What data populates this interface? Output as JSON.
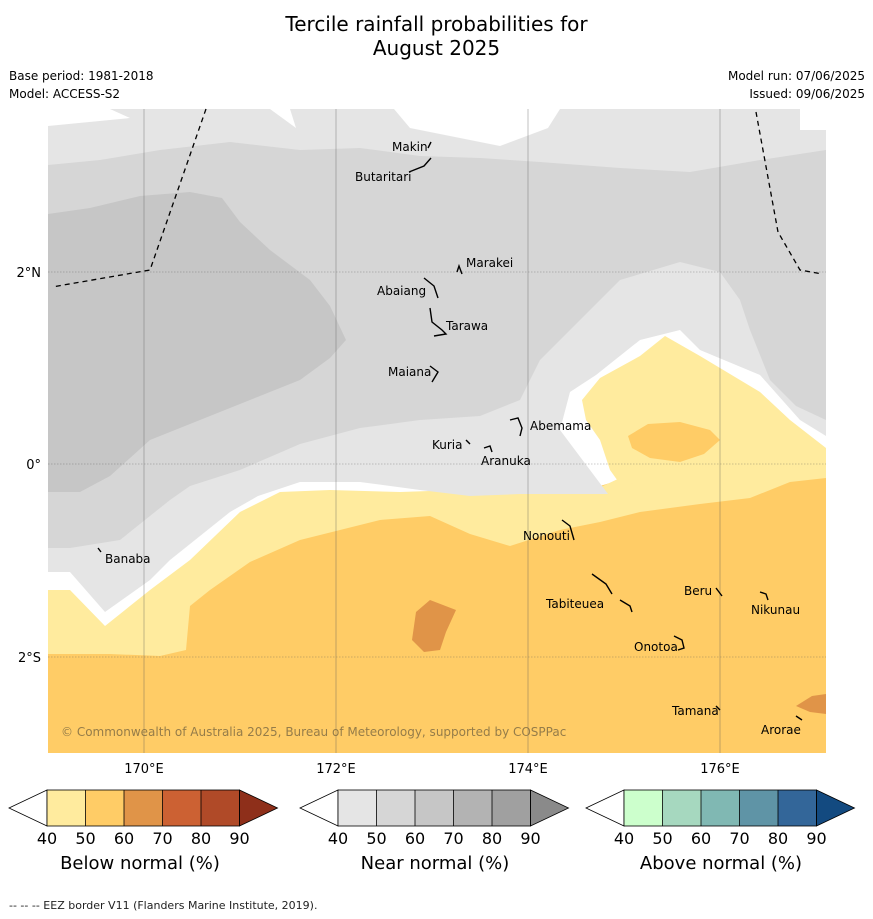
{
  "title_line1": "Tercile rainfall probabilities for",
  "title_line2": "August 2025",
  "base_period": "Base period: 1981-2018",
  "model": "Model: ACCESS-S2",
  "model_run": "Model run: 07/06/2025",
  "issued": "Issued: 09/06/2025",
  "copyright": "© Commonwealth of Australia 2025, Bureau of Meteorology, supported by COSPPac",
  "footer": "--  --  -- EEZ border V11 (Flanders Marine Institute, 2019).",
  "lon_labels": [
    "170°E",
    "172°E",
    "174°E",
    "176°E"
  ],
  "lat_labels": [
    "2°N",
    "0°",
    "2°S"
  ],
  "places": [
    {
      "name": "Makin"
    },
    {
      "name": "Butaritari"
    },
    {
      "name": "Marakei"
    },
    {
      "name": "Abaiang"
    },
    {
      "name": "Tarawa"
    },
    {
      "name": "Maiana"
    },
    {
      "name": "Abemama"
    },
    {
      "name": "Kuria"
    },
    {
      "name": "Aranuka"
    },
    {
      "name": "Nonouti"
    },
    {
      "name": "Banaba"
    },
    {
      "name": "Tabiteuea"
    },
    {
      "name": "Beru"
    },
    {
      "name": "Nikunau"
    },
    {
      "name": "Onotoa"
    },
    {
      "name": "Tamana"
    },
    {
      "name": "Arorae"
    }
  ],
  "colorbars": [
    {
      "label": "Below normal (%)",
      "ticks": [
        "40",
        "50",
        "60",
        "70",
        "80",
        "90"
      ],
      "colors": [
        "#ffffff",
        "#ffeb9e",
        "#ffcc66",
        "#e09448",
        "#cc6133",
        "#b04a28",
        "#8e2f1a"
      ]
    },
    {
      "label": "Near normal (%)",
      "ticks": [
        "40",
        "50",
        "60",
        "70",
        "80",
        "90"
      ],
      "colors": [
        "#ffffff",
        "#e5e5e5",
        "#d6d6d6",
        "#c6c6c6",
        "#b3b3b3",
        "#a0a0a0",
        "#8a8a8a"
      ]
    },
    {
      "label": "Above normal (%)",
      "ticks": [
        "40",
        "50",
        "60",
        "70",
        "80",
        "90"
      ],
      "colors": [
        "#ffffff",
        "#ccffcc",
        "#a6d8bf",
        "#80b8b3",
        "#5f94a6",
        "#336699",
        "#134a80"
      ]
    }
  ]
}
